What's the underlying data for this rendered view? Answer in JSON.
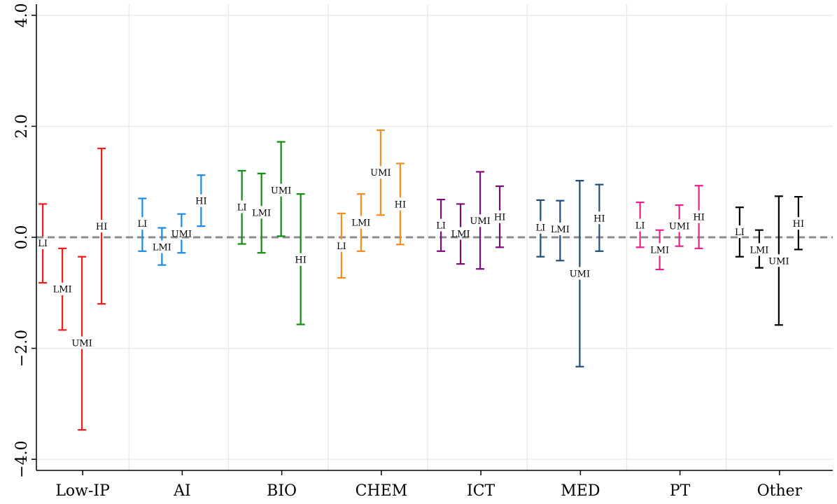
{
  "chart_data": {
    "type": "errorbar",
    "title": "",
    "xlabel": "",
    "ylabel": "",
    "ylim": [
      -4.2,
      4.2
    ],
    "yticks": [
      -4.0,
      -2.0,
      0.0,
      2.0,
      4.0
    ],
    "ytick_labels": [
      "−4.0",
      "−2.0",
      "0.0",
      "2.0",
      "4.0"
    ],
    "grid": true,
    "reference_line": 0.0,
    "reference_color": "#8c8c8c",
    "categories": [
      "Low-IP",
      "AI",
      "BIO",
      "CHEM",
      "ICT",
      "MED",
      "PT",
      "Other"
    ],
    "colors": [
      "#ee1c1c",
      "#1e88e5",
      "#138a13",
      "#f58c1e",
      "#7d0a7d",
      "#1f4e79",
      "#e8208c",
      "#000000"
    ],
    "groups": [
      {
        "label": "LI",
        "lows": [
          -0.82,
          -0.25,
          -0.12,
          -0.73,
          -0.25,
          -0.35,
          -0.18,
          -0.35
        ],
        "highs": [
          0.6,
          0.7,
          1.2,
          0.43,
          0.68,
          0.67,
          0.63,
          0.54
        ],
        "labels": [
          -0.1,
          0.25,
          0.55,
          -0.15,
          0.22,
          0.18,
          0.22,
          0.1
        ]
      },
      {
        "label": "LMI",
        "lows": [
          -1.67,
          -0.5,
          -0.28,
          -0.25,
          -0.48,
          -0.42,
          -0.58,
          -0.55
        ],
        "highs": [
          -0.2,
          0.17,
          1.15,
          0.78,
          0.6,
          0.66,
          0.13,
          0.13
        ],
        "labels": [
          -0.93,
          -0.17,
          0.45,
          0.27,
          0.07,
          0.15,
          -0.22,
          -0.22
        ]
      },
      {
        "label": "UMI",
        "lows": [
          -3.47,
          -0.28,
          0.02,
          0.4,
          -0.57,
          -2.33,
          -0.16,
          -1.58
        ],
        "highs": [
          -0.35,
          0.42,
          1.72,
          1.93,
          1.18,
          1.02,
          0.58,
          0.74
        ],
        "labels": [
          -1.9,
          0.07,
          0.85,
          1.17,
          0.3,
          -0.65,
          0.21,
          -0.42
        ]
      },
      {
        "label": "HI",
        "lows": [
          -1.2,
          0.2,
          -1.57,
          -0.13,
          -0.18,
          -0.25,
          -0.2,
          -0.22
        ],
        "highs": [
          1.6,
          1.12,
          0.78,
          1.33,
          0.92,
          0.95,
          0.93,
          0.73
        ],
        "labels": [
          0.2,
          0.66,
          -0.4,
          0.6,
          0.37,
          0.35,
          0.37,
          0.25
        ]
      }
    ]
  }
}
